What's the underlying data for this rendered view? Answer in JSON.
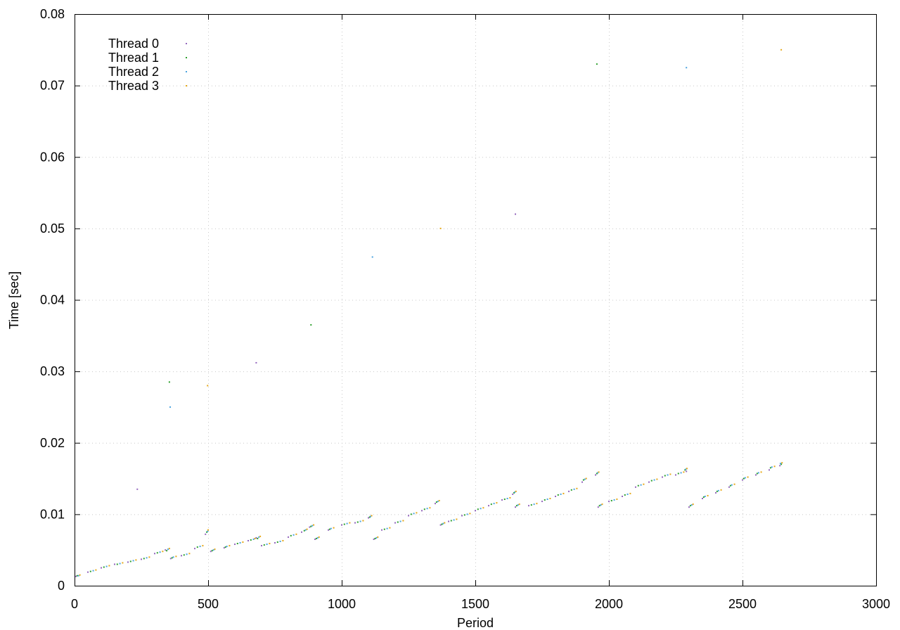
{
  "chart_data": {
    "type": "scatter",
    "title": "",
    "xlabel": "Period",
    "ylabel": "Time [sec]",
    "xlim": [
      0,
      3000
    ],
    "ylim": [
      0,
      0.08
    ],
    "xticks": [
      0,
      500,
      1000,
      1500,
      2000,
      2500,
      3000
    ],
    "xtick_labels": [
      "0",
      "500",
      "1000",
      "1500",
      "2000",
      "2500",
      "3000"
    ],
    "yticks": [
      0,
      0.01,
      0.02,
      0.03,
      0.04,
      0.05,
      0.06,
      0.07,
      0.08
    ],
    "ytick_labels": [
      "0",
      "0.01",
      "0.02",
      "0.03",
      "0.04",
      "0.05",
      "0.06",
      "0.07",
      "0.08"
    ],
    "grid": true,
    "legend_position": "top-left",
    "marker": "dot",
    "series": [
      {
        "name": "Thread 0",
        "color": "#9467bd",
        "values_note": "",
        "x": [
          5,
          50,
          100,
          150,
          200,
          250,
          300,
          340,
          360,
          400,
          450,
          490,
          510,
          560,
          600,
          650,
          680,
          700,
          750,
          800,
          850,
          880,
          900,
          950,
          1000,
          1050,
          1100,
          1120,
          1150,
          1200,
          1250,
          1300,
          1350,
          1370,
          1400,
          1450,
          1500,
          1550,
          1600,
          1640,
          1650,
          1700,
          1750,
          1800,
          1850,
          1900,
          1950,
          1960,
          2000,
          2050,
          2100,
          2150,
          2200,
          2250,
          2290,
          2300,
          2350,
          2400,
          2450,
          2500,
          2550,
          2600,
          2640
        ],
        "y": [
          0.0013,
          0.0019,
          0.0025,
          0.003,
          0.0033,
          0.0037,
          0.0045,
          0.005,
          0.0038,
          0.0042,
          0.0052,
          0.0072,
          0.0048,
          0.0053,
          0.0058,
          0.0063,
          0.0067,
          0.0056,
          0.006,
          0.0068,
          0.0075,
          0.0082,
          0.0065,
          0.0078,
          0.0085,
          0.0088,
          0.0095,
          0.0065,
          0.0078,
          0.0088,
          0.0098,
          0.0105,
          0.0115,
          0.0085,
          0.009,
          0.0098,
          0.0105,
          0.0112,
          0.012,
          0.0128,
          0.011,
          0.0112,
          0.0118,
          0.0125,
          0.0132,
          0.0145,
          0.0155,
          0.011,
          0.0118,
          0.0125,
          0.0138,
          0.0145,
          0.0152,
          0.0155,
          0.016,
          0.011,
          0.0122,
          0.013,
          0.0138,
          0.0148,
          0.0155,
          0.0162,
          0.0168
        ]
      },
      {
        "name": "Thread 1",
        "color": "#2ca02c",
        "x": [
          10,
          60,
          110,
          160,
          210,
          260,
          310,
          345,
          365,
          410,
          460,
          495,
          515,
          565,
          610,
          660,
          685,
          710,
          760,
          810,
          860,
          885,
          905,
          955,
          1010,
          1060,
          1105,
          1125,
          1160,
          1210,
          1260,
          1310,
          1355,
          1375,
          1410,
          1460,
          1510,
          1560,
          1610,
          1645,
          1655,
          1710,
          1760,
          1810,
          1860,
          1905,
          1955,
          1965,
          2010,
          2060,
          2110,
          2160,
          2210,
          2260,
          2285,
          2305,
          2355,
          2405,
          2455,
          2505,
          2555,
          2605,
          2645
        ],
        "y": [
          0.0014,
          0.002,
          0.0026,
          0.003,
          0.0034,
          0.0038,
          0.0046,
          0.0049,
          0.0039,
          0.0043,
          0.0054,
          0.0075,
          0.0049,
          0.0054,
          0.0059,
          0.0064,
          0.0066,
          0.0057,
          0.0061,
          0.007,
          0.0077,
          0.0083,
          0.0066,
          0.0079,
          0.0086,
          0.0089,
          0.0096,
          0.0066,
          0.0079,
          0.0089,
          0.01,
          0.0107,
          0.0117,
          0.0086,
          0.0091,
          0.0099,
          0.0107,
          0.0114,
          0.0121,
          0.013,
          0.0112,
          0.0113,
          0.012,
          0.0127,
          0.0134,
          0.0148,
          0.0157,
          0.0112,
          0.0119,
          0.0127,
          0.014,
          0.0147,
          0.0154,
          0.0157,
          0.0162,
          0.0112,
          0.0124,
          0.0132,
          0.014,
          0.015,
          0.0157,
          0.0165,
          0.017
        ]
      },
      {
        "name": "Thread 2",
        "color": "#4aa3df",
        "x": [
          15,
          70,
          120,
          170,
          220,
          270,
          320,
          350,
          370,
          420,
          470,
          498,
          520,
          570,
          620,
          670,
          690,
          720,
          770,
          820,
          865,
          890,
          910,
          960,
          1020,
          1070,
          1108,
          1130,
          1170,
          1220,
          1270,
          1320,
          1360,
          1380,
          1420,
          1470,
          1520,
          1570,
          1620,
          1648,
          1660,
          1720,
          1770,
          1820,
          1870,
          1910,
          1958,
          1970,
          2020,
          2070,
          2120,
          2170,
          2220,
          2270,
          2288,
          2310,
          2360,
          2410,
          2460,
          2510,
          2560,
          2610,
          2642
        ],
        "y": [
          0.0014,
          0.0021,
          0.0027,
          0.0031,
          0.0035,
          0.0039,
          0.0047,
          0.0051,
          0.004,
          0.0044,
          0.0055,
          0.0076,
          0.005,
          0.0055,
          0.006,
          0.0065,
          0.0068,
          0.0058,
          0.0062,
          0.0071,
          0.0078,
          0.0084,
          0.0067,
          0.008,
          0.0087,
          0.009,
          0.0097,
          0.0067,
          0.008,
          0.009,
          0.0101,
          0.0108,
          0.0118,
          0.0087,
          0.0092,
          0.01,
          0.0108,
          0.0115,
          0.0122,
          0.0131,
          0.0113,
          0.0114,
          0.0121,
          0.0128,
          0.0135,
          0.0149,
          0.0158,
          0.0113,
          0.012,
          0.0128,
          0.0141,
          0.0148,
          0.0155,
          0.0158,
          0.0163,
          0.0113,
          0.0125,
          0.0133,
          0.0141,
          0.0151,
          0.0158,
          0.0166,
          0.0171
        ]
      },
      {
        "name": "Thread 3",
        "color": "#e6a817",
        "x": [
          20,
          80,
          130,
          180,
          230,
          280,
          330,
          355,
          380,
          430,
          480,
          500,
          525,
          580,
          630,
          675,
          695,
          730,
          780,
          830,
          870,
          895,
          915,
          970,
          1030,
          1080,
          1112,
          1135,
          1180,
          1230,
          1280,
          1330,
          1365,
          1385,
          1430,
          1480,
          1530,
          1580,
          1630,
          1652,
          1665,
          1730,
          1780,
          1830,
          1880,
          1915,
          1962,
          1975,
          2030,
          2080,
          2130,
          2180,
          2230,
          2280,
          2292,
          2315,
          2370,
          2420,
          2470,
          2520,
          2570,
          2620,
          2648
        ],
        "y": [
          0.0015,
          0.0022,
          0.0028,
          0.0032,
          0.0036,
          0.004,
          0.0048,
          0.0052,
          0.0041,
          0.0045,
          0.0056,
          0.0078,
          0.0051,
          0.0056,
          0.0061,
          0.0066,
          0.0069,
          0.0059,
          0.0063,
          0.0072,
          0.0079,
          0.0085,
          0.0068,
          0.0081,
          0.0088,
          0.0091,
          0.0098,
          0.0068,
          0.0081,
          0.0091,
          0.0102,
          0.0109,
          0.0119,
          0.0088,
          0.0093,
          0.0101,
          0.0109,
          0.0116,
          0.0123,
          0.0132,
          0.0114,
          0.0115,
          0.0122,
          0.0129,
          0.0136,
          0.015,
          0.0159,
          0.0114,
          0.0121,
          0.0129,
          0.0142,
          0.0149,
          0.0156,
          0.0159,
          0.0164,
          0.0114,
          0.0126,
          0.0134,
          0.0142,
          0.0152,
          0.0159,
          0.0167,
          0.0172
        ]
      }
    ],
    "outliers": {
      "x": [
        235,
        355,
        358,
        498,
        680,
        885,
        1115,
        1370,
        1650,
        1955,
        2290,
        2645
      ],
      "y": [
        0.0135,
        0.0285,
        0.025,
        0.028,
        0.0312,
        0.0365,
        0.046,
        0.05,
        0.052,
        0.073,
        0.0725,
        0.075
      ]
    }
  }
}
